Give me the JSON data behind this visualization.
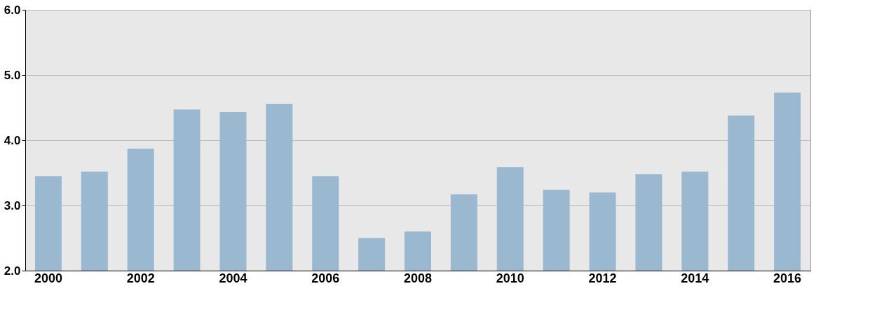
{
  "chart_data": {
    "type": "bar",
    "categories": [
      "2000",
      null,
      "2002",
      null,
      "2004",
      null,
      "2006",
      null,
      "2008",
      null,
      "2010",
      null,
      "2012",
      null,
      "2014",
      null,
      "2016"
    ],
    "values": [
      3.45,
      3.52,
      3.87,
      4.47,
      4.43,
      4.56,
      3.45,
      2.5,
      2.6,
      3.17,
      3.59,
      3.24,
      3.2,
      3.48,
      3.52,
      4.38,
      4.73
    ],
    "color": "#9ab8cf",
    "ylim": [
      2,
      6
    ],
    "yticks": [
      {
        "value": 2,
        "label": "2.0"
      },
      {
        "value": 3,
        "label": "3.0"
      },
      {
        "value": 4,
        "label": "4.0"
      },
      {
        "value": 5,
        "label": "5.0"
      },
      {
        "value": 6,
        "label": "6.0"
      }
    ],
    "grid": "y"
  }
}
